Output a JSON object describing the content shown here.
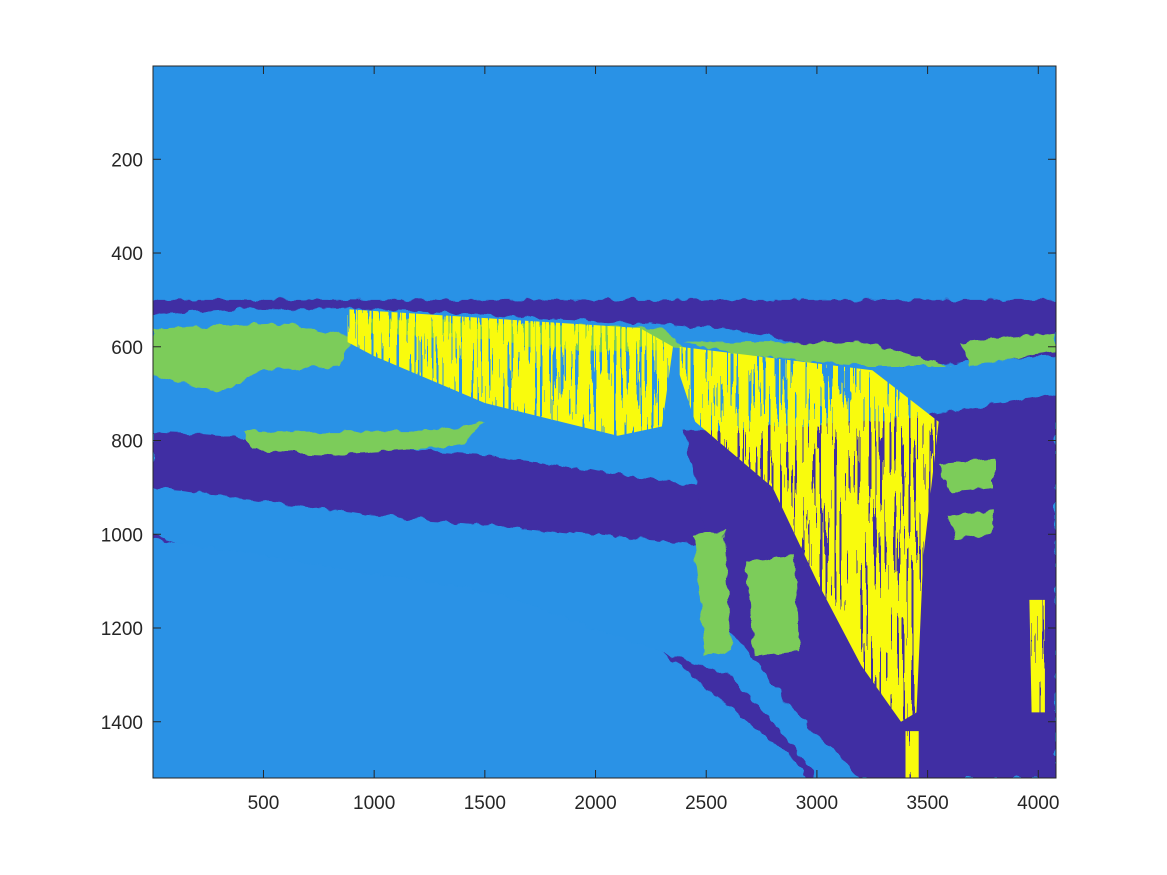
{
  "chart_data": {
    "type": "heatmap",
    "title": "",
    "xlabel": "",
    "ylabel": "",
    "xlim": [
      1,
      4080
    ],
    "ylim": [
      1,
      1520
    ],
    "y_reversed": true,
    "x_ticks": [
      500,
      1000,
      1500,
      2000,
      2500,
      3000,
      3500,
      4000
    ],
    "x_tick_labels": [
      "500",
      "1000",
      "1500",
      "2000",
      "2500",
      "3000",
      "3500",
      "4000"
    ],
    "y_ticks": [
      200,
      400,
      600,
      800,
      1000,
      1200,
      1400
    ],
    "y_tick_labels": [
      "200",
      "400",
      "600",
      "800",
      "1000",
      "1200",
      "1400"
    ],
    "grid": false,
    "legend": "none",
    "colormap_classes": [
      {
        "class": 1,
        "color": "#3f2ea3"
      },
      {
        "class": 2,
        "color": "#2992e6"
      },
      {
        "class": 3,
        "color": "#7ccc5a"
      },
      {
        "class": 4,
        "color": "#f9fb0e"
      }
    ],
    "background_class": 2,
    "regions": [
      {
        "class": 2,
        "x": [
          1,
          4080
        ],
        "y": [
          1,
          500
        ],
        "shape": "rect"
      },
      {
        "class": 1,
        "shape": "poly",
        "points": [
          [
            1,
            500
          ],
          [
            4080,
            500
          ],
          [
            4080,
            620
          ],
          [
            3400,
            640
          ],
          [
            2600,
            560
          ],
          [
            1800,
            540
          ],
          [
            1000,
            520
          ],
          [
            400,
            520
          ],
          [
            1,
            530
          ]
        ]
      },
      {
        "class": 3,
        "shape": "poly",
        "points": [
          [
            1,
            560
          ],
          [
            600,
            550
          ],
          [
            900,
            580
          ],
          [
            850,
            640
          ],
          [
            500,
            650
          ],
          [
            300,
            700
          ],
          [
            1,
            660
          ]
        ]
      },
      {
        "class": 3,
        "shape": "poly",
        "points": [
          [
            900,
            540
          ],
          [
            2300,
            560
          ],
          [
            2400,
            600
          ],
          [
            2000,
            610
          ],
          [
            1400,
            580
          ],
          [
            950,
            570
          ]
        ]
      },
      {
        "class": 3,
        "shape": "poly",
        "points": [
          [
            2400,
            590
          ],
          [
            3200,
            590
          ],
          [
            3600,
            640
          ],
          [
            3200,
            640
          ],
          [
            2700,
            620
          ]
        ]
      },
      {
        "class": 3,
        "shape": "poly",
        "points": [
          [
            3650,
            590
          ],
          [
            4080,
            570
          ],
          [
            4080,
            610
          ],
          [
            3700,
            640
          ]
        ]
      },
      {
        "class": 1,
        "shape": "poly",
        "points": [
          [
            1,
            780
          ],
          [
            1500,
            830
          ],
          [
            2500,
            900
          ],
          [
            3000,
            980
          ],
          [
            2900,
            1040
          ],
          [
            2000,
            1000
          ],
          [
            1000,
            960
          ],
          [
            1,
            900
          ]
        ]
      },
      {
        "class": 1,
        "shape": "poly",
        "points": [
          [
            2400,
            780
          ],
          [
            3300,
            760
          ],
          [
            4080,
            700
          ],
          [
            4080,
            1520
          ],
          [
            3200,
            1520
          ],
          [
            2900,
            1380
          ],
          [
            2600,
            1200
          ],
          [
            2500,
            1000
          ]
        ]
      },
      {
        "class": 1,
        "shape": "poly",
        "points": [
          [
            1,
            1000
          ],
          [
            600,
            1100
          ],
          [
            1200,
            1150
          ],
          [
            1800,
            1170
          ],
          [
            2600,
            1300
          ],
          [
            2800,
            1400
          ],
          [
            3000,
            1520
          ],
          [
            1,
            1520
          ]
        ]
      },
      {
        "class": 2,
        "shape": "poly",
        "points": [
          [
            1,
            1010
          ],
          [
            1500,
            1120
          ],
          [
            2300,
            1250
          ],
          [
            2900,
            1480
          ],
          [
            2950,
            1520
          ],
          [
            1,
            1520
          ]
        ]
      },
      {
        "class": 3,
        "shape": "poly",
        "points": [
          [
            400,
            780
          ],
          [
            1300,
            780
          ],
          [
            1500,
            760
          ],
          [
            1400,
            810
          ],
          [
            800,
            830
          ],
          [
            450,
            820
          ]
        ]
      },
      {
        "class": 3,
        "shape": "poly",
        "points": [
          [
            2440,
            1000
          ],
          [
            2580,
            990
          ],
          [
            2620,
            1250
          ],
          [
            2500,
            1260
          ]
        ]
      },
      {
        "class": 3,
        "shape": "poly",
        "points": [
          [
            2680,
            1060
          ],
          [
            2900,
            1040
          ],
          [
            2920,
            1250
          ],
          [
            2720,
            1260
          ]
        ]
      },
      {
        "class": 3,
        "shape": "poly",
        "points": [
          [
            3550,
            850
          ],
          [
            3800,
            840
          ],
          [
            3800,
            900
          ],
          [
            3600,
            910
          ]
        ]
      },
      {
        "class": 3,
        "shape": "poly",
        "points": [
          [
            3600,
            960
          ],
          [
            3800,
            950
          ],
          [
            3790,
            1000
          ],
          [
            3620,
            1010
          ]
        ]
      },
      {
        "class": 4,
        "shape": "poly",
        "points": [
          [
            880,
            520
          ],
          [
            2200,
            560
          ],
          [
            2350,
            600
          ],
          [
            2300,
            770
          ],
          [
            2100,
            790
          ],
          [
            1500,
            720
          ],
          [
            1000,
            620
          ],
          [
            880,
            590
          ]
        ]
      },
      {
        "class": 4,
        "shape": "poly",
        "points": [
          [
            2380,
            600
          ],
          [
            3250,
            650
          ],
          [
            3550,
            760
          ],
          [
            3480,
            1050
          ],
          [
            3450,
            1380
          ],
          [
            3380,
            1400
          ],
          [
            3200,
            1280
          ],
          [
            3000,
            1100
          ],
          [
            2800,
            900
          ],
          [
            2450,
            760
          ],
          [
            2380,
            660
          ]
        ]
      },
      {
        "class": 4,
        "shape": "poly",
        "points": [
          [
            3960,
            1140
          ],
          [
            4030,
            1140
          ],
          [
            4030,
            1380
          ],
          [
            3970,
            1380
          ]
        ]
      },
      {
        "class": 4,
        "shape": "poly",
        "points": [
          [
            3400,
            1420
          ],
          [
            3460,
            1420
          ],
          [
            3460,
            1520
          ],
          [
            3400,
            1520
          ]
        ]
      }
    ]
  }
}
